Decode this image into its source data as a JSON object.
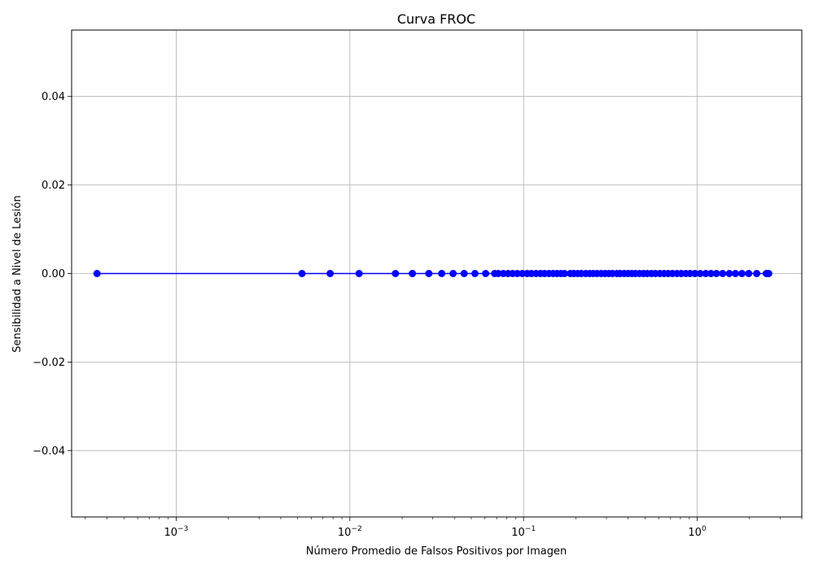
{
  "chart_data": {
    "type": "line",
    "title": "Curva FROC",
    "xlabel": "Número Promedio de Falsos Positivos por Imagen",
    "ylabel": "Sensibilidad a Nivel de Lesión",
    "xscale": "log",
    "xlim": [
      0.00025,
      4.0
    ],
    "ylim": [
      -0.055,
      0.055
    ],
    "grid": true,
    "marker": "circle",
    "line_color": "#0000ff",
    "x_ticks": [
      {
        "value": 0.001,
        "base": "10",
        "exp": "−3"
      },
      {
        "value": 0.01,
        "base": "10",
        "exp": "−2"
      },
      {
        "value": 0.1,
        "base": "10",
        "exp": "−1"
      },
      {
        "value": 1,
        "base": "10",
        "exp": "0"
      }
    ],
    "y_ticks": [
      {
        "value": 0.04,
        "label": "0.04"
      },
      {
        "value": 0.02,
        "label": "0.02"
      },
      {
        "value": 0.0,
        "label": "0.00"
      },
      {
        "value": -0.02,
        "label": "−0.02"
      },
      {
        "value": -0.04,
        "label": "−0.04"
      }
    ],
    "series": [
      {
        "x": [
          0.00035,
          0.0053,
          0.0077,
          0.0113,
          0.0183,
          0.0229,
          0.0285,
          0.0338,
          0.0393,
          0.0455,
          0.0525,
          0.0605,
          0.0682,
          0.0715,
          0.0765,
          0.0815,
          0.0865,
          0.092,
          0.0985,
          0.105,
          0.111,
          0.118,
          0.125,
          0.132,
          0.14,
          0.148,
          0.156,
          0.164,
          0.172,
          0.186,
          0.195,
          0.205,
          0.215,
          0.228,
          0.24,
          0.252,
          0.265,
          0.28,
          0.295,
          0.31,
          0.325,
          0.345,
          0.36,
          0.38,
          0.4,
          0.42,
          0.44,
          0.465,
          0.49,
          0.515,
          0.545,
          0.575,
          0.61,
          0.645,
          0.68,
          0.72,
          0.765,
          0.81,
          0.86,
          0.91,
          0.97,
          1.04,
          1.12,
          1.2,
          1.29,
          1.4,
          1.53,
          1.66,
          1.81,
          1.98,
          2.2,
          2.5,
          2.55,
          2.58
        ],
        "y": [
          0,
          0,
          0,
          0,
          0,
          0,
          0,
          0,
          0,
          0,
          0,
          0,
          0,
          0,
          0,
          0,
          0,
          0,
          0,
          0,
          0,
          0,
          0,
          0,
          0,
          0,
          0,
          0,
          0,
          0,
          0,
          0,
          0,
          0,
          0,
          0,
          0,
          0,
          0,
          0,
          0,
          0,
          0,
          0,
          0,
          0,
          0,
          0,
          0,
          0,
          0,
          0,
          0,
          0,
          0,
          0,
          0,
          0,
          0,
          0,
          0,
          0,
          0,
          0,
          0,
          0,
          0,
          0,
          0,
          0,
          0,
          0,
          0,
          0
        ]
      }
    ]
  }
}
